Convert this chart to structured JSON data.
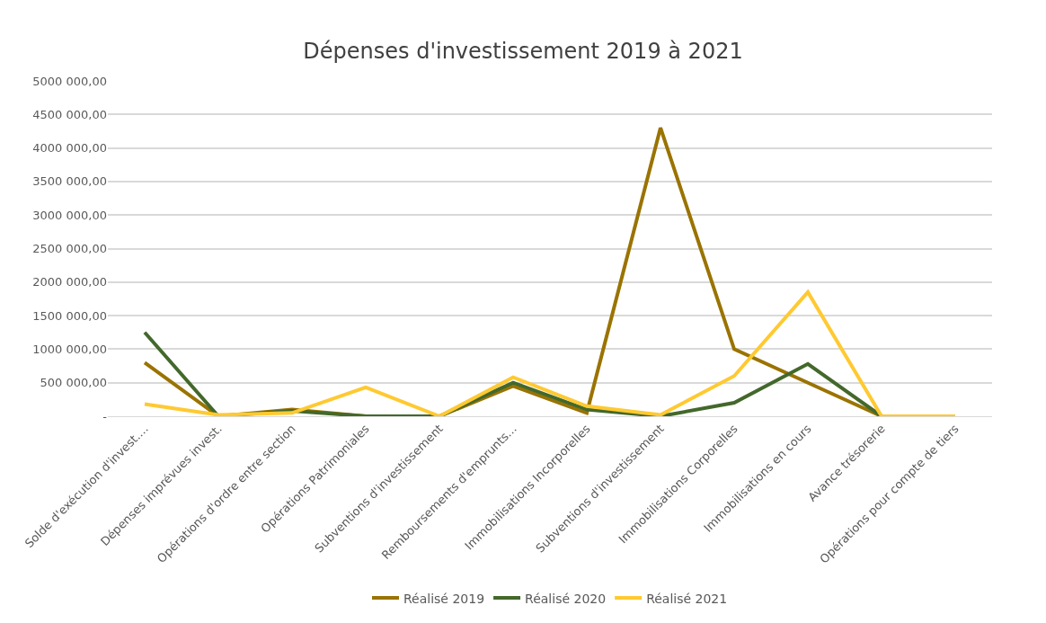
{
  "chart_data": {
    "type": "line",
    "title": "Dépenses d'investissement 2019 à 2021",
    "categories": [
      "Solde d'exécution d'invest....",
      "Dépenses imprévues invest.",
      "Opérations d'ordre entre section",
      "Opérations Patrimoniales",
      "Subventions d'investissement",
      "Remboursements d'emprunts...",
      "Immobilisations Incorporelles",
      "Subventions d'investissement",
      "Immobilisations Corporelles",
      "Immobilisations en cours",
      "Avance trésorerie",
      "Opérations pour compte de tiers"
    ],
    "series": [
      {
        "name": "Réalisé 2019",
        "color": "#9a7300",
        "values": [
          800000,
          0,
          100000,
          0,
          0,
          450000,
          50000,
          4300000,
          1000000,
          500000,
          0,
          null
        ]
      },
      {
        "name": "Réalisé 2020",
        "color": "#43682b",
        "values": [
          1250000,
          0,
          80000,
          0,
          0,
          500000,
          100000,
          0,
          200000,
          780000,
          0,
          null
        ]
      },
      {
        "name": "Réalisé 2021",
        "color": "#ffc931",
        "values": [
          180000,
          20000,
          50000,
          430000,
          0,
          580000,
          150000,
          20000,
          600000,
          1850000,
          0,
          0
        ]
      }
    ],
    "ylim": [
      0,
      5000000
    ],
    "yticks": [
      {
        "value": 0,
        "label": "-"
      },
      {
        "value": 500000,
        "label": "500 000,00"
      },
      {
        "value": 1000000,
        "label": "1000 000,00"
      },
      {
        "value": 1500000,
        "label": "1500 000,00"
      },
      {
        "value": 2000000,
        "label": "2000 000,00"
      },
      {
        "value": 2500000,
        "label": "2500 000,00"
      },
      {
        "value": 3000000,
        "label": "3000 000,00"
      },
      {
        "value": 3500000,
        "label": "3500 000,00"
      },
      {
        "value": 4000000,
        "label": "4000 000,00"
      },
      {
        "value": 4500000,
        "label": "4500 000,00"
      },
      {
        "value": 5000000,
        "label": "5000 000,00"
      }
    ],
    "grid": "y",
    "legend": "bottom",
    "marker": "none",
    "line_style": "solid"
  }
}
